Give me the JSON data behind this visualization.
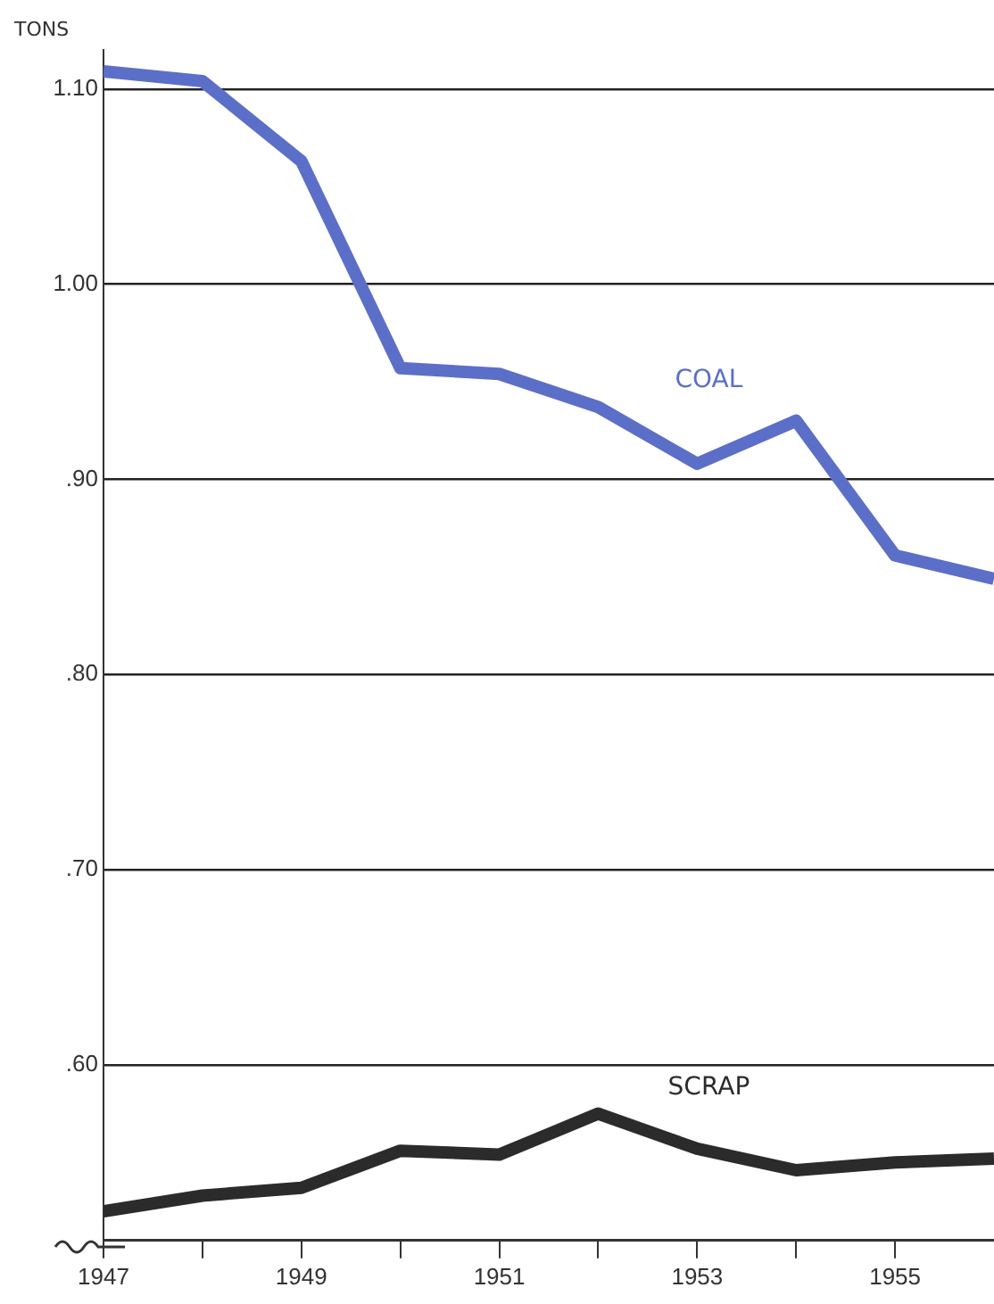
{
  "chart_data": {
    "type": "line",
    "ylabel": "TONS",
    "x": [
      1947,
      1948,
      1949,
      1950,
      1951,
      1952,
      1953,
      1954,
      1955,
      1956
    ],
    "series": [
      {
        "name": "COAL",
        "color": "#5b6fc8",
        "values": [
          1.109,
          1.104,
          1.063,
          0.957,
          0.954,
          0.937,
          0.908,
          0.93,
          0.861,
          0.849
        ]
      },
      {
        "name": "SCRAP",
        "color": "#2b2b2b",
        "values": [
          0.525,
          0.533,
          0.537,
          0.556,
          0.554,
          0.575,
          0.557,
          0.546,
          0.55,
          0.552
        ]
      }
    ],
    "xlim": [
      1947,
      1956
    ],
    "xticks": [
      1947,
      {
        "value": 1948,
        "label": null
      },
      1949,
      {
        "value": 1950,
        "label": null
      },
      1951,
      {
        "value": 1952,
        "label": null
      },
      1953,
      {
        "value": 1954,
        "label": null
      },
      1955
    ],
    "ylim": [
      0.51,
      1.12
    ],
    "yticks": [
      {
        "value": 0.6,
        "label": ".60"
      },
      {
        "value": 0.7,
        "label": ".70"
      },
      {
        "value": 0.8,
        "label": ".80"
      },
      {
        "value": 0.9,
        "label": ".90"
      },
      {
        "value": 1.0,
        "label": "1.00"
      },
      {
        "value": 1.1,
        "label": "1.10"
      }
    ],
    "grid": "y",
    "legend": false,
    "marker": "none",
    "line_style": "solid"
  }
}
